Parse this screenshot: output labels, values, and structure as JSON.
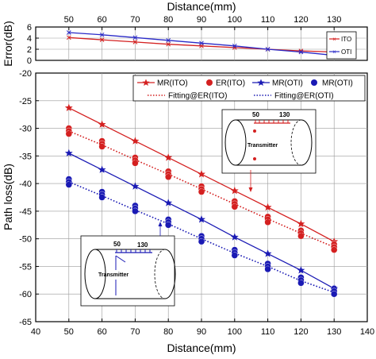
{
  "chart_data": [
    {
      "panel": "top",
      "type": "line",
      "xlabel": "Distance(mm)",
      "ylabel": "Error(dB)",
      "xlim": [
        40,
        140
      ],
      "ylim": [
        0,
        6
      ],
      "x_ticks": [
        40,
        50,
        60,
        70,
        80,
        90,
        100,
        110,
        120,
        130,
        140
      ],
      "y_ticks": [
        0,
        2,
        4,
        6
      ],
      "x_tick_labels": [
        "50",
        "60",
        "70",
        "80",
        "90",
        "100",
        "110",
        "120",
        "130"
      ],
      "y_tick_labels": [
        "0",
        "2",
        "4",
        "6"
      ],
      "x_tick_position": "top",
      "grid": true,
      "legend_position": "right",
      "series": [
        {
          "name": "ITO",
          "color": "#d42020",
          "marker": "cross",
          "x": [
            50,
            60,
            70,
            80,
            90,
            100,
            110,
            120,
            130
          ],
          "values": [
            4.1,
            3.7,
            3.3,
            2.9,
            2.6,
            2.3,
            2.0,
            1.7,
            1.5
          ]
        },
        {
          "name": "OTI",
          "color": "#2a2ac8",
          "marker": "cross",
          "x": [
            50,
            60,
            70,
            80,
            90,
            100,
            110,
            120,
            130
          ],
          "values": [
            5.0,
            4.6,
            4.1,
            3.6,
            3.1,
            2.6,
            2.0,
            1.5,
            0.9
          ]
        }
      ]
    },
    {
      "panel": "bottom",
      "type": "line",
      "xlabel": "Distance(mm)",
      "ylabel": "Path loss(dB)",
      "xlim": [
        40,
        140
      ],
      "ylim": [
        -65,
        -20
      ],
      "x_ticks": [
        40,
        50,
        60,
        70,
        80,
        90,
        100,
        110,
        120,
        130,
        140
      ],
      "y_ticks": [
        -65,
        -60,
        -55,
        -50,
        -45,
        -40,
        -35,
        -30,
        -25,
        -20
      ],
      "x_tick_labels": [
        "40",
        "50",
        "60",
        "70",
        "80",
        "90",
        "100",
        "110",
        "120",
        "130",
        "140"
      ],
      "y_tick_labels": [
        "-65",
        "-60",
        "-55",
        "-50",
        "-45",
        "-40",
        "-35",
        "-30",
        "-25",
        "-20"
      ],
      "grid": true,
      "legend_position": "top-right",
      "series": [
        {
          "name": "MR(ITO)",
          "color": "#d42020",
          "style": "solid",
          "marker": "star",
          "x": [
            50,
            60,
            70,
            80,
            90,
            100,
            110,
            120,
            130
          ],
          "values": [
            -26.3,
            -29.3,
            -32.3,
            -35.3,
            -38.3,
            -41.3,
            -44.3,
            -47.3,
            -50.5
          ]
        },
        {
          "name": "ER(ITO)",
          "color": "#d42020",
          "style": "none",
          "marker": "circle",
          "x": [
            50,
            60,
            70,
            80,
            90,
            100,
            110,
            120,
            130
          ],
          "values": [
            [
              -30.0,
              -30.5,
              -31.0
            ],
            [
              -32.3,
              -32.8,
              -33.3
            ],
            [
              -35.3,
              -35.8,
              -36.3
            ],
            [
              -37.8,
              -38.3,
              -38.8
            ],
            [
              -40.5,
              -41.0,
              -41.5
            ],
            [
              -43.2,
              -43.7,
              -44.2
            ],
            [
              -46.0,
              -46.5,
              -47.0
            ],
            [
              -48.5,
              -49.0,
              -49.5
            ],
            [
              -51.0,
              -51.5,
              -52.0
            ]
          ]
        },
        {
          "name": "MR(OTI)",
          "color": "#1a1ab4",
          "style": "solid",
          "marker": "star",
          "x": [
            50,
            60,
            70,
            80,
            90,
            100,
            110,
            120,
            130
          ],
          "values": [
            -34.5,
            -37.5,
            -40.5,
            -43.5,
            -46.5,
            -49.7,
            -52.7,
            -55.7,
            -59.0
          ]
        },
        {
          "name": "MR(OTI)",
          "color": "#1a1ab4",
          "style": "none",
          "marker": "circle",
          "x": [
            50,
            60,
            70,
            80,
            90,
            100,
            110,
            120,
            130
          ],
          "values": [
            [
              -39.2,
              -39.7,
              -40.2
            ],
            [
              -41.5,
              -42.0,
              -42.5
            ],
            [
              -44.0,
              -44.5,
              -45.0
            ],
            [
              -46.5,
              -47.0,
              -47.5
            ],
            [
              -49.5,
              -50.0,
              -50.5
            ],
            [
              -52.0,
              -52.5,
              -53.0
            ],
            [
              -54.5,
              -55.0,
              -55.5
            ],
            [
              -57.0,
              -57.5,
              -58.0
            ],
            [
              -59.0,
              -59.5,
              -60.0
            ]
          ]
        },
        {
          "name": "Fitting@ER(ITO)",
          "color": "#d42020",
          "style": "dotted",
          "marker": "none",
          "x": [
            50,
            60,
            70,
            80,
            90,
            100,
            110,
            120,
            130
          ],
          "values": [
            -30.5,
            -33.0,
            -35.7,
            -38.3,
            -41.0,
            -43.7,
            -46.4,
            -49.0,
            -51.5
          ]
        },
        {
          "name": "Fitting@ER(OTI)",
          "color": "#1a1ab4",
          "style": "dotted",
          "marker": "none",
          "x": [
            50,
            60,
            70,
            80,
            90,
            100,
            110,
            120,
            130
          ],
          "values": [
            -39.7,
            -42.2,
            -44.8,
            -47.3,
            -50.0,
            -52.6,
            -55.0,
            -57.6,
            -59.7
          ]
        }
      ],
      "insets": [
        {
          "name": "inset-ito",
          "scale_left": "50",
          "scale_right": "130",
          "label": "Transmitter",
          "arrow_color": "#d42020"
        },
        {
          "name": "inset-oti",
          "scale_left": "50",
          "scale_right": "130",
          "label": "Transmitter",
          "arrow_color": "#1a1ab4"
        }
      ]
    }
  ]
}
